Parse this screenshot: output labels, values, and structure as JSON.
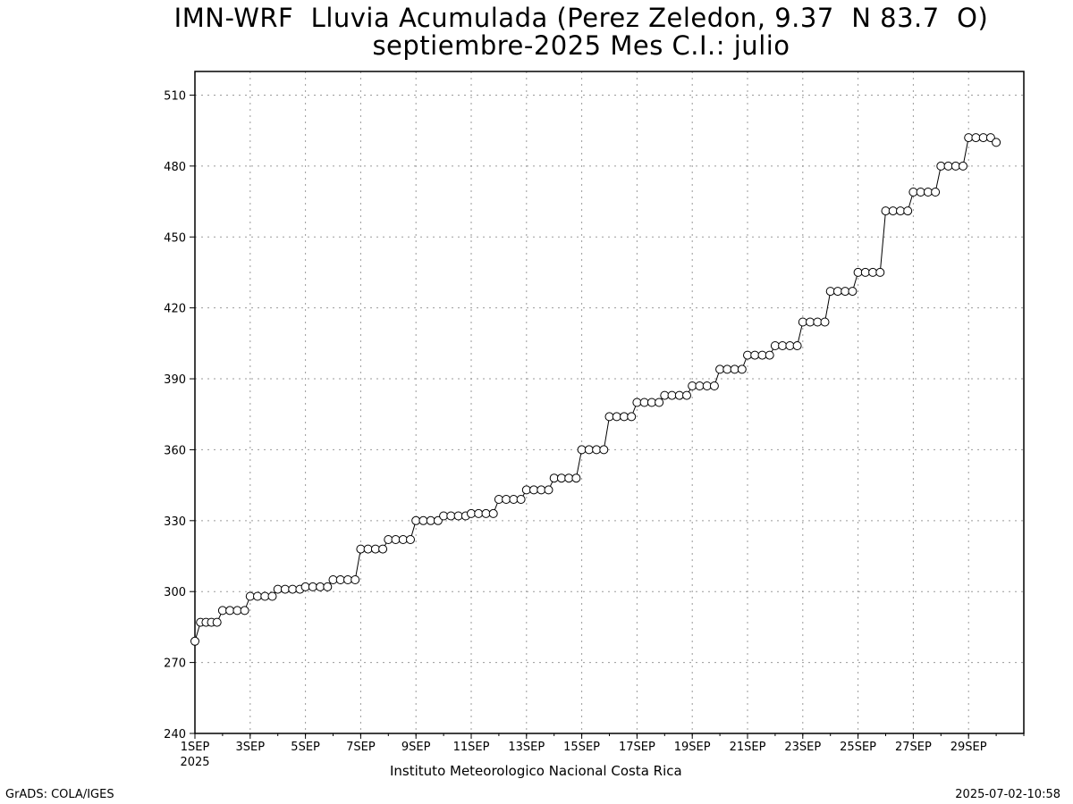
{
  "title_line1": "IMN-WRF  Lluvia Acumulada (Perez Zeledon, 9.37  N 83.7  O)",
  "title_line2": "septiembre-2025 Mes C.I.: julio",
  "footer_center": "Instituto Meteorologico Nacional Costa Rica",
  "footer_left": "GrADS: COLA/IGES",
  "footer_right": "2025-07-02-10:58",
  "chart_data": {
    "type": "line",
    "title": "IMN-WRF  Lluvia Acumulada (Perez Zeledon, 9.37  N 83.7  O)",
    "subtitle": "septiembre-2025 Mes C.I.: julio",
    "xlabel": "",
    "ylabel": "",
    "ylim": [
      240,
      520
    ],
    "xlim": [
      1,
      31
    ],
    "x_unit": "day of September 2025",
    "grid": true,
    "yticks": [
      240,
      270,
      300,
      330,
      360,
      390,
      420,
      450,
      480,
      510
    ],
    "xticks": [
      1,
      3,
      5,
      7,
      9,
      11,
      13,
      15,
      17,
      19,
      21,
      23,
      25,
      27,
      29
    ],
    "xtick_labels": [
      "1SEP",
      "3SEP",
      "5SEP",
      "7SEP",
      "9SEP",
      "11SEP",
      "13SEP",
      "15SEP",
      "17SEP",
      "19SEP",
      "21SEP",
      "23SEP",
      "25SEP",
      "27SEP",
      "29SEP"
    ],
    "xtick_sublabel": "2025",
    "series": [
      {
        "marker": "open-circle",
        "daily_values": [
          [
            279,
            287,
            287,
            287,
            287
          ],
          [
            292,
            292,
            292,
            292
          ],
          [
            298,
            298,
            298,
            298
          ],
          [
            301,
            301,
            301,
            301
          ],
          [
            302,
            302,
            302,
            302
          ],
          [
            305,
            305,
            305,
            305
          ],
          [
            318,
            318,
            318,
            318
          ],
          [
            322,
            322,
            322,
            322
          ],
          [
            330,
            330,
            330,
            330
          ],
          [
            332,
            332,
            332,
            332
          ],
          [
            333,
            333,
            333,
            333
          ],
          [
            339,
            339,
            339,
            339
          ],
          [
            343,
            343,
            343,
            343
          ],
          [
            348,
            348,
            348,
            348
          ],
          [
            360,
            360,
            360,
            360
          ],
          [
            374,
            374,
            374,
            374
          ],
          [
            380,
            380,
            380,
            380
          ],
          [
            383,
            383,
            383,
            383
          ],
          [
            387,
            387,
            387,
            387
          ],
          [
            394,
            394,
            394,
            394
          ],
          [
            400,
            400,
            400,
            400
          ],
          [
            404,
            404,
            404,
            404
          ],
          [
            414,
            414,
            414,
            414
          ],
          [
            427,
            427,
            427,
            427
          ],
          [
            435,
            435,
            435,
            435
          ],
          [
            461,
            461,
            461,
            461
          ],
          [
            469,
            469,
            469,
            469
          ],
          [
            480,
            480,
            480,
            480
          ],
          [
            492,
            492,
            492,
            492
          ],
          [
            490
          ]
        ]
      }
    ]
  }
}
